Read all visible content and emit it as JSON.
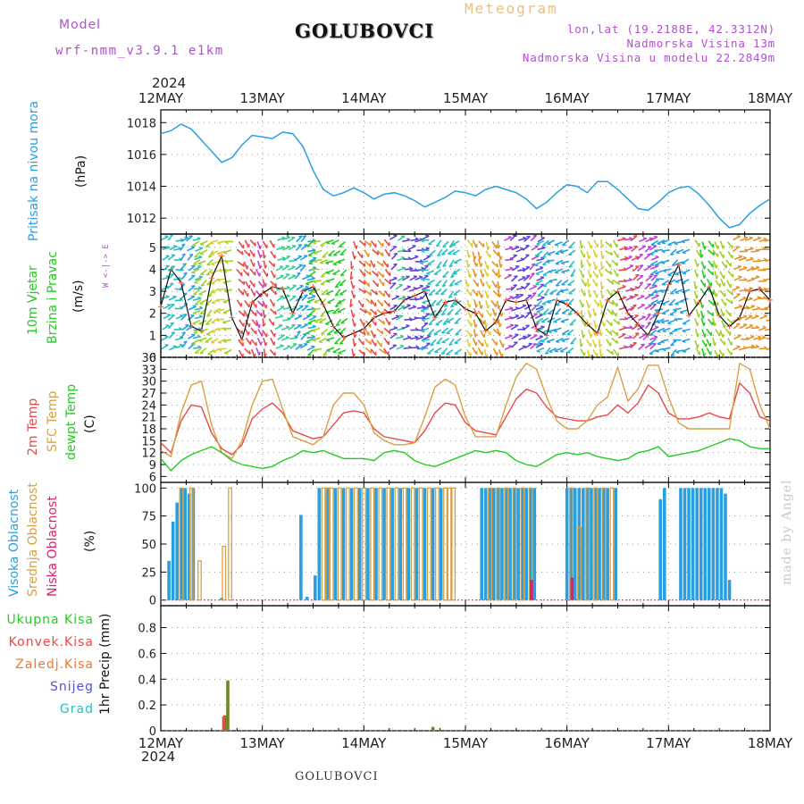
{
  "header": {
    "model_label": "Model",
    "model_name": "wrf-nmm_v3.9.1 e1km",
    "station": "GOLUBOVCI",
    "product": "Meteogram",
    "lonlat": "lon,lat (19.2188E, 42.3312N)",
    "elevation": "Nadmorska Visina 13m",
    "model_elevation": "Nadmorska Visina u modelu 22.2849m",
    "footer_station": "GOLUBOVCI",
    "watermark": "made by Angel",
    "year_top": "2024",
    "year_bottom": "2024"
  },
  "colors": {
    "pressure": "#2a9fe0",
    "temp2m": "#e84848",
    "sfc": "#d8a040",
    "dew": "#22cc22",
    "cloud_high": "#2a9fe0",
    "cloud_mid": "#d8a040",
    "cloud_low": "#e0206a",
    "precip_total": "#22cc22",
    "precip_conv": "#e84848",
    "precip_frz": "#f07830",
    "precip_snow": "#5050e0",
    "precip_grad": "#22c0c0",
    "wind_label": "#22cc22",
    "wind_dir": "#b050d0"
  },
  "chart_data": [
    {
      "panel": "pressure",
      "type": "line",
      "ylabel_left": "Pritisak na nivou mora",
      "ylabel_unit": "(hPa)",
      "x_ticks": [
        "12MAY",
        "13MAY",
        "14MAY",
        "15MAY",
        "16MAY",
        "17MAY",
        "18MAY"
      ],
      "y_ticks": [
        "1012",
        "1014",
        "1016",
        "1018"
      ],
      "ylim": [
        1011,
        1018.8
      ],
      "xlim_days": [
        0,
        6
      ],
      "x_days": [
        0,
        0.1,
        0.2,
        0.3,
        0.4,
        0.5,
        0.6,
        0.7,
        0.8,
        0.9,
        1.0,
        1.1,
        1.2,
        1.3,
        1.4,
        1.5,
        1.6,
        1.7,
        1.8,
        1.9,
        2.0,
        2.1,
        2.2,
        2.3,
        2.4,
        2.5,
        2.6,
        2.7,
        2.8,
        2.9,
        3.0,
        3.1,
        3.2,
        3.3,
        3.4,
        3.5,
        3.6,
        3.7,
        3.8,
        3.9,
        4.0,
        4.1,
        4.2,
        4.3,
        4.4,
        4.5,
        4.6,
        4.7,
        4.8,
        4.9,
        5.0,
        5.1,
        5.2,
        5.3,
        5.4,
        5.5,
        5.6,
        5.7,
        5.8,
        5.9,
        6.0
      ],
      "values": [
        1017.3,
        1017.5,
        1017.9,
        1017.6,
        1016.9,
        1016.2,
        1015.5,
        1015.8,
        1016.6,
        1017.2,
        1017.1,
        1017.0,
        1017.4,
        1017.3,
        1016.5,
        1015.0,
        1013.8,
        1013.4,
        1013.6,
        1013.9,
        1013.6,
        1013.2,
        1013.5,
        1013.6,
        1013.4,
        1013.1,
        1012.7,
        1013.0,
        1013.3,
        1013.7,
        1013.6,
        1013.4,
        1013.8,
        1014.0,
        1013.8,
        1013.6,
        1013.2,
        1012.6,
        1013.0,
        1013.6,
        1014.1,
        1014.0,
        1013.6,
        1014.3,
        1014.3,
        1013.8,
        1013.2,
        1012.6,
        1012.5,
        1013.0,
        1013.6,
        1013.9,
        1014.0,
        1013.5,
        1012.8,
        1012.0,
        1011.4,
        1011.6,
        1012.3,
        1012.8,
        1013.2
      ]
    },
    {
      "panel": "wind",
      "type": "line",
      "ylabel_left1": "10m Vjetar",
      "ylabel_left2": "Brzina i Pravac",
      "ylabel_unit": "(m/s)",
      "direction_label": "W <-|-> E",
      "y_ticks": [
        "0",
        "1",
        "2",
        "3",
        "4",
        "5"
      ],
      "ylim": [
        0,
        5.6
      ],
      "xlim_days": [
        0,
        6
      ],
      "x_days": [
        0,
        0.1,
        0.2,
        0.3,
        0.4,
        0.5,
        0.6,
        0.7,
        0.8,
        0.9,
        1.0,
        1.1,
        1.2,
        1.3,
        1.4,
        1.5,
        1.6,
        1.7,
        1.8,
        1.9,
        2.0,
        2.1,
        2.2,
        2.3,
        2.4,
        2.5,
        2.6,
        2.7,
        2.8,
        2.9,
        3.0,
        3.1,
        3.2,
        3.3,
        3.4,
        3.5,
        3.6,
        3.7,
        3.8,
        3.9,
        4.0,
        4.1,
        4.2,
        4.3,
        4.4,
        4.5,
        4.6,
        4.7,
        4.8,
        4.9,
        5.0,
        5.1,
        5.2,
        5.3,
        5.4,
        5.5,
        5.6,
        5.7,
        5.8,
        5.9,
        6.0
      ],
      "values": [
        2.3,
        4.0,
        3.4,
        1.4,
        1.2,
        3.6,
        4.6,
        1.8,
        0.8,
        2.5,
        2.9,
        3.2,
        3.1,
        2.0,
        3.0,
        3.2,
        2.4,
        1.4,
        0.9,
        1.1,
        1.3,
        1.8,
        2.0,
        2.1,
        2.6,
        2.8,
        3.0,
        1.8,
        2.5,
        2.6,
        2.2,
        2.0,
        1.2,
        1.6,
        2.6,
        2.5,
        2.6,
        1.3,
        1.0,
        2.6,
        2.4,
        2.0,
        1.5,
        1.1,
        2.6,
        3.0,
        2.0,
        1.5,
        1.0,
        2.0,
        3.3,
        4.2,
        1.9,
        2.5,
        3.2,
        1.9,
        1.4,
        1.8,
        3.0,
        3.1,
        2.6
      ]
    },
    {
      "panel": "temperature",
      "type": "line",
      "ylabel_left1": "2m Temp",
      "ylabel_left2": "SFC Temp",
      "ylabel_left3": "dewpt Temp",
      "ylabel_unit": "(C)",
      "y_ticks": [
        "6",
        "9",
        "12",
        "15",
        "18",
        "21",
        "24",
        "27",
        "30",
        "33",
        "36"
      ],
      "ylim": [
        4.5,
        36
      ],
      "xlim_days": [
        0,
        6
      ],
      "x_days": [
        0,
        0.1,
        0.2,
        0.3,
        0.4,
        0.5,
        0.6,
        0.7,
        0.8,
        0.9,
        1.0,
        1.1,
        1.2,
        1.3,
        1.4,
        1.5,
        1.6,
        1.7,
        1.8,
        1.9,
        2.0,
        2.1,
        2.2,
        2.3,
        2.4,
        2.5,
        2.6,
        2.7,
        2.8,
        2.9,
        3.0,
        3.1,
        3.2,
        3.3,
        3.4,
        3.5,
        3.6,
        3.7,
        3.8,
        3.9,
        4.0,
        4.1,
        4.2,
        4.3,
        4.4,
        4.5,
        4.6,
        4.7,
        4.8,
        4.9,
        5.0,
        5.1,
        5.2,
        5.3,
        5.4,
        5.5,
        5.6,
        5.7,
        5.8,
        5.9,
        6.0
      ],
      "series": [
        {
          "name": "2m Temp",
          "values": [
            14.5,
            12.0,
            20.0,
            24.0,
            23.5,
            17.0,
            13.0,
            11.5,
            14.0,
            20.5,
            23.0,
            24.5,
            22.0,
            17.5,
            16.5,
            15.5,
            16.0,
            19.0,
            22.0,
            22.5,
            22.0,
            18.0,
            16.0,
            15.5,
            15.0,
            14.5,
            17.5,
            22.0,
            24.5,
            24.0,
            19.5,
            17.5,
            17.0,
            16.5,
            21.0,
            25.5,
            28.0,
            27.0,
            23.5,
            21.0,
            20.5,
            20.0,
            20.0,
            21.0,
            21.5,
            24.0,
            22.0,
            24.5,
            29.0,
            27.0,
            22.0,
            20.5,
            20.5,
            21.0,
            22.0,
            21.0,
            20.5,
            29.5,
            27.0,
            21.0,
            20.0
          ]
        },
        {
          "name": "SFC Temp",
          "values": [
            12.5,
            11.0,
            22.0,
            29.0,
            30.0,
            19.0,
            12.0,
            10.5,
            15.0,
            24.0,
            30.0,
            30.5,
            23.0,
            16.0,
            15.0,
            14.0,
            16.0,
            24.0,
            27.0,
            27.0,
            24.0,
            17.0,
            15.0,
            14.0,
            14.0,
            14.5,
            21.0,
            28.5,
            30.5,
            29.0,
            21.0,
            16.0,
            16.0,
            16.0,
            24.0,
            31.0,
            34.5,
            33.0,
            26.0,
            20.0,
            18.0,
            18.0,
            20.0,
            24.0,
            26.0,
            33.5,
            25.0,
            28.0,
            34.0,
            34.0,
            26.0,
            19.5,
            18.0,
            18.0,
            18.0,
            18.0,
            18.0,
            34.5,
            33.0,
            24.0,
            18.0
          ]
        },
        {
          "name": "dewpt Temp",
          "values": [
            10.5,
            7.5,
            10.0,
            11.5,
            12.5,
            13.5,
            12.0,
            10.0,
            9.0,
            8.5,
            8.0,
            8.5,
            10.0,
            11.0,
            12.5,
            12.0,
            12.5,
            11.5,
            10.5,
            10.5,
            10.5,
            10.0,
            12.0,
            12.5,
            12.0,
            10.0,
            9.0,
            8.5,
            9.5,
            10.5,
            11.5,
            12.5,
            12.0,
            12.5,
            12.0,
            10.0,
            9.0,
            8.5,
            10.0,
            11.5,
            12.0,
            11.5,
            12.0,
            11.0,
            10.5,
            10.0,
            10.5,
            12.0,
            12.5,
            13.5,
            11.0,
            11.5,
            12.0,
            12.5,
            13.5,
            14.5,
            15.5,
            15.0,
            13.5,
            13.0,
            13.0
          ]
        }
      ]
    },
    {
      "panel": "clouds",
      "type": "bar",
      "ylabel_left1": "Visoka Oblacnost",
      "ylabel_left2": "Srednja Oblacnost",
      "ylabel_left3": "Niska Oblacnost",
      "ylabel_unit": "(%)",
      "y_ticks": [
        "0",
        "25",
        "50",
        "75",
        "100"
      ],
      "ylim": [
        -5,
        105
      ],
      "xlim_days": [
        0,
        6
      ],
      "series": [
        {
          "name": "Visoka Oblacnost",
          "x_days": [
            0.08,
            0.12,
            0.16,
            0.2,
            0.24,
            0.28,
            0.32,
            0.6,
            1.38,
            1.44,
            1.52,
            1.56,
            1.64,
            1.72,
            1.8,
            1.88,
            1.96,
            2.04,
            2.12,
            2.2,
            2.28,
            2.36,
            2.44,
            2.52,
            2.6,
            2.68,
            2.76,
            3.16,
            3.2,
            3.24,
            3.28,
            3.32,
            3.36,
            3.4,
            3.44,
            3.48,
            3.52,
            3.56,
            3.6,
            3.64,
            3.68,
            4.0,
            4.04,
            4.08,
            4.12,
            4.16,
            4.2,
            4.24,
            4.28,
            4.32,
            4.36,
            4.4,
            4.48,
            4.92,
            4.96,
            5.12,
            5.16,
            5.2,
            5.24,
            5.28,
            5.32,
            5.36,
            5.4,
            5.44,
            5.48,
            5.52,
            5.56,
            5.6
          ],
          "values": [
            35,
            70,
            87,
            100,
            100,
            95,
            100,
            2,
            76,
            3,
            22,
            100,
            100,
            100,
            100,
            100,
            100,
            100,
            100,
            100,
            100,
            100,
            100,
            100,
            100,
            100,
            100,
            100,
            100,
            100,
            100,
            100,
            100,
            100,
            100,
            100,
            100,
            100,
            100,
            100,
            100,
            100,
            100,
            100,
            100,
            100,
            100,
            100,
            100,
            100,
            100,
            100,
            100,
            90,
            100,
            100,
            100,
            100,
            100,
            100,
            100,
            100,
            100,
            100,
            100,
            100,
            95,
            18
          ]
        },
        {
          "name": "Srednja Oblacnost",
          "x_days": [
            0.2,
            0.3,
            0.38,
            0.62,
            0.68,
            1.6,
            1.64,
            1.68,
            1.76,
            1.84,
            1.92,
            2.0,
            2.08,
            2.16,
            2.24,
            2.32,
            2.4,
            2.48,
            2.56,
            2.64,
            2.72,
            2.8,
            2.84,
            2.88,
            3.24,
            3.32,
            3.4,
            3.48,
            3.56,
            3.64,
            4.04,
            4.12,
            4.2,
            4.28,
            4.36,
            4.44
          ],
          "values": [
            100,
            100,
            35,
            48,
            100,
            100,
            100,
            100,
            100,
            100,
            100,
            100,
            100,
            100,
            100,
            100,
            100,
            100,
            100,
            100,
            100,
            100,
            100,
            100,
            100,
            100,
            100,
            100,
            100,
            100,
            100,
            65,
            100,
            100,
            100,
            100
          ]
        },
        {
          "name": "Niska Oblacnost",
          "x_days": [
            3.65,
            4.05
          ],
          "values": [
            18,
            20
          ]
        }
      ]
    },
    {
      "panel": "precip",
      "type": "bar",
      "ylabel_unit": "1hr Precip (mm)",
      "y_ticks": [
        "0",
        "0.2",
        "0.4",
        "0.6",
        "0.8"
      ],
      "ylim": [
        0,
        0.97
      ],
      "xlim_days": [
        0,
        6
      ],
      "x_ticks_bottom": [
        "12MAY",
        "13MAY",
        "14MAY",
        "15MAY",
        "16MAY",
        "17MAY",
        "18MAY"
      ],
      "legend": [
        "Ukupna Kisa",
        "Konvek.Kisa",
        "Zaledj.Kisa",
        "Snijeg",
        "Grad"
      ],
      "series": [
        {
          "name": "Ukupna Kisa",
          "x_days": [
            0.63,
            0.66,
            2.68
          ],
          "values": [
            0.12,
            0.39,
            0.03
          ]
        },
        {
          "name": "Konvek.Kisa",
          "x_days": [
            0.62
          ],
          "values": [
            0.11
          ]
        }
      ]
    }
  ]
}
